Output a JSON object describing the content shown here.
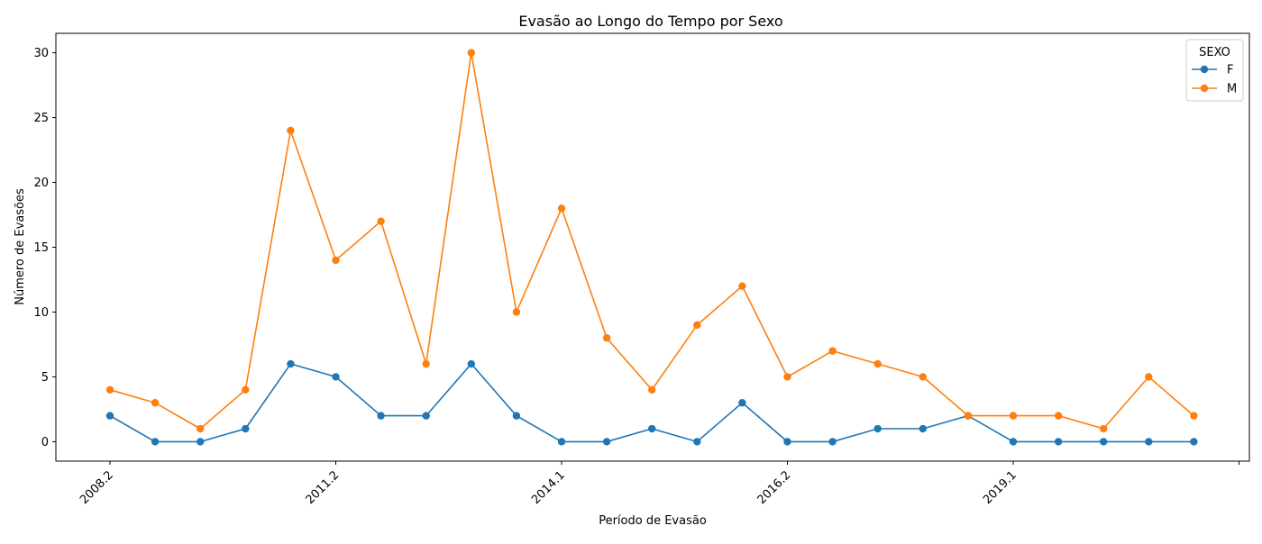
{
  "chart_data": {
    "type": "line",
    "title": "Evasão ao Longo do Tempo por Sexo",
    "xlabel": "Período de Evasão",
    "ylabel": "Número de Evasões",
    "x_tick_labels": [
      "2008.2",
      "2011.2",
      "2014.1",
      "2016.2",
      "2019.1",
      ""
    ],
    "y_ticks": [
      0,
      5,
      10,
      15,
      20,
      25,
      30
    ],
    "ylim": [
      -1.5,
      31.5
    ],
    "num_points": 25,
    "grid": false,
    "legend": {
      "title": "SEXO",
      "placement": "top-right"
    },
    "series": [
      {
        "name": "F",
        "color": "#1f77b4",
        "values": [
          2,
          0,
          0,
          1,
          6,
          5,
          2,
          2,
          6,
          2,
          0,
          0,
          1,
          0,
          3,
          0,
          0,
          1,
          1,
          2,
          0,
          0,
          0,
          0,
          0
        ]
      },
      {
        "name": "M",
        "color": "#ff7f0e",
        "values": [
          4,
          3,
          1,
          4,
          24,
          14,
          17,
          6,
          30,
          10,
          18,
          8,
          4,
          9,
          12,
          5,
          7,
          6,
          5,
          2,
          2,
          2,
          1,
          5,
          2
        ]
      }
    ]
  }
}
